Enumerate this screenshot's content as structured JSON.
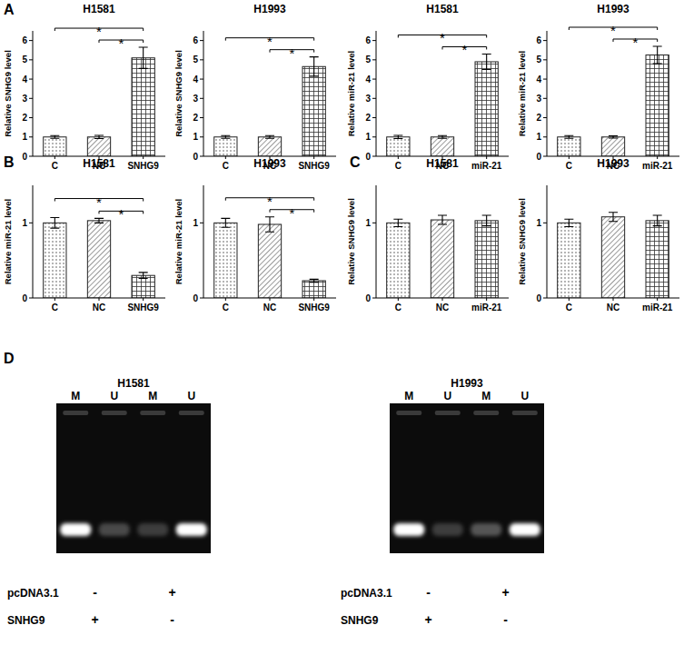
{
  "panel_labels": [
    "A",
    "B",
    "C",
    "D"
  ],
  "chart_data": [
    {
      "type": "bar",
      "title": "H1581",
      "y_label": "Relative SNHG9 level",
      "categories": [
        "C",
        "NC",
        "SNHG9"
      ],
      "values": [
        1.0,
        1.0,
        5.1
      ],
      "errors": [
        0.07,
        0.08,
        0.55
      ],
      "ylim": [
        0,
        6.5
      ],
      "yticks": [
        0,
        1,
        2,
        3,
        4,
        5,
        6
      ],
      "annotations": [
        {
          "text": "*",
          "between": [
            "NC",
            "SNHG9"
          ]
        },
        {
          "text": "*",
          "between": [
            "C",
            "SNHG9"
          ]
        }
      ]
    },
    {
      "type": "bar",
      "title": "H1993",
      "y_label": "Relative SNHG9 level",
      "categories": [
        "C",
        "NC",
        "SNHG9"
      ],
      "values": [
        1.0,
        1.0,
        4.65
      ],
      "errors": [
        0.07,
        0.07,
        0.5
      ],
      "ylim": [
        0,
        6.5
      ],
      "yticks": [
        0,
        1,
        2,
        3,
        4,
        5,
        6
      ],
      "annotations": [
        {
          "text": "*",
          "between": [
            "NC",
            "SNHG9"
          ]
        },
        {
          "text": "*",
          "between": [
            "C",
            "SNHG9"
          ]
        }
      ]
    },
    {
      "type": "bar",
      "title": "H1581",
      "y_label": "Relative miR-21 level",
      "categories": [
        "C",
        "NC",
        "miR-21"
      ],
      "values": [
        1.0,
        1.0,
        4.9
      ],
      "errors": [
        0.08,
        0.07,
        0.4
      ],
      "ylim": [
        0,
        6.5
      ],
      "yticks": [
        0,
        1,
        2,
        3,
        4,
        5,
        6
      ],
      "annotations": [
        {
          "text": "*",
          "between": [
            "NC",
            "miR-21"
          ]
        },
        {
          "text": "*",
          "between": [
            "C",
            "miR-21"
          ]
        }
      ]
    },
    {
      "type": "bar",
      "title": "H1993",
      "y_label": "Relative miR-21 level",
      "categories": [
        "C",
        "NC",
        "miR-21"
      ],
      "values": [
        1.0,
        1.0,
        5.25
      ],
      "errors": [
        0.07,
        0.06,
        0.45
      ],
      "ylim": [
        0,
        6.5
      ],
      "yticks": [
        0,
        1,
        2,
        3,
        4,
        5,
        6
      ],
      "annotations": [
        {
          "text": "*",
          "between": [
            "NC",
            "miR-21"
          ]
        },
        {
          "text": "*",
          "between": [
            "C",
            "miR-21"
          ]
        }
      ]
    },
    {
      "type": "bar",
      "title": "H1581",
      "y_label": "Relative miR-21 level",
      "categories": [
        "C",
        "NC",
        "SNHG9"
      ],
      "values": [
        1.0,
        1.03,
        0.3
      ],
      "errors": [
        0.07,
        0.03,
        0.04
      ],
      "ylim": [
        0,
        1.5
      ],
      "yticks": [
        0,
        1
      ],
      "annotations": [
        {
          "text": "*",
          "between": [
            "NC",
            "SNHG9"
          ]
        },
        {
          "text": "*",
          "between": [
            "C",
            "SNHG9"
          ]
        }
      ]
    },
    {
      "type": "bar",
      "title": "H1993",
      "y_label": "Relative miR-21 level",
      "categories": [
        "C",
        "NC",
        "SNHG9"
      ],
      "values": [
        1.0,
        0.98,
        0.23
      ],
      "errors": [
        0.06,
        0.1,
        0.02
      ],
      "ylim": [
        0,
        1.5
      ],
      "yticks": [
        0,
        1
      ],
      "annotations": [
        {
          "text": "*",
          "between": [
            "NC",
            "SNHG9"
          ]
        },
        {
          "text": "*",
          "between": [
            "C",
            "SNHG9"
          ]
        }
      ]
    },
    {
      "type": "bar",
      "title": "H1581",
      "y_label": "Relative SNHG9 level",
      "categories": [
        "C",
        "NC",
        "miR-21"
      ],
      "values": [
        1.0,
        1.04,
        1.03
      ],
      "errors": [
        0.05,
        0.06,
        0.07
      ],
      "ylim": [
        0,
        1.5
      ],
      "yticks": [
        0,
        1
      ]
    },
    {
      "type": "bar",
      "title": "H1993",
      "y_label": "Relative SNHG9 level",
      "categories": [
        "C",
        "NC",
        "miR-21"
      ],
      "values": [
        1.0,
        1.08,
        1.03
      ],
      "errors": [
        0.05,
        0.06,
        0.07
      ],
      "ylim": [
        0,
        1.5
      ],
      "yticks": [
        0,
        1
      ]
    }
  ],
  "gels": [
    {
      "title": "H1581",
      "lanes": [
        "M",
        "U",
        "M",
        "U"
      ],
      "band_intensity": [
        1,
        0.25,
        0.2,
        1
      ],
      "conditions": [
        {
          "name": "pcDNA3.1",
          "signs": [
            "-",
            "+"
          ]
        },
        {
          "name": "SNHG9",
          "signs": [
            "+",
            "-"
          ]
        }
      ]
    },
    {
      "title": "H1993",
      "lanes": [
        "M",
        "U",
        "M",
        "U"
      ],
      "band_intensity": [
        1,
        0.2,
        0.3,
        1
      ],
      "conditions": [
        {
          "name": "pcDNA3.1",
          "signs": [
            "-",
            "+"
          ]
        },
        {
          "name": "SNHG9",
          "signs": [
            "+",
            "-"
          ]
        }
      ]
    }
  ]
}
